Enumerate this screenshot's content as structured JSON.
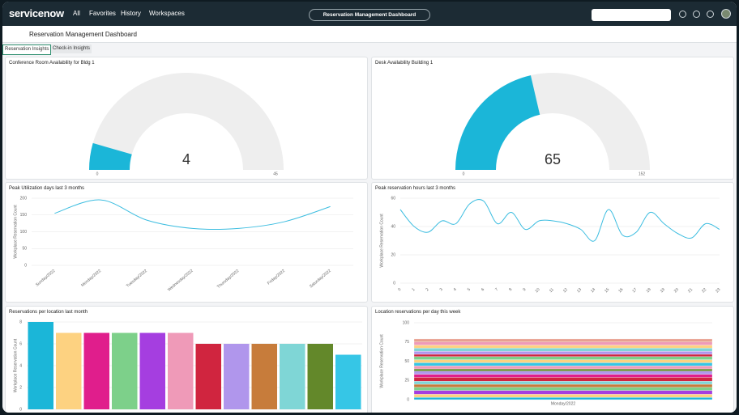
{
  "nav": {
    "logo": "servicenow",
    "items": [
      "All",
      "Favorites",
      "History",
      "Workspaces"
    ],
    "context": "Reservation Management Dashboard"
  },
  "header": {
    "title": "Reservation Management Dashboard"
  },
  "tabs": [
    "Reservation Insights",
    "Check-in Insights"
  ],
  "chart_data": [
    {
      "type": "gauge",
      "title": "Conference Room Availability for Bldg 1",
      "value": 4,
      "min": 0,
      "max": 45,
      "color": "#1bb6d8",
      "track_color": "#eeeeee"
    },
    {
      "type": "gauge",
      "title": "Desk Availability Building 1",
      "value": 65,
      "min": 0,
      "max": 152,
      "color": "#1bb6d8",
      "track_color": "#eeeeee"
    },
    {
      "type": "line",
      "title": "Peak Utilization days last 3 months",
      "y_label": "Workplace Reservation Count",
      "color": "#3cbde0",
      "categories": [
        "Sunday/2022",
        "Monday/2022",
        "Tuesday/2022",
        "Wednesday/2022",
        "Thursday/2022",
        "Friday/2022",
        "Saturday/2022"
      ],
      "values": [
        155,
        195,
        135,
        110,
        110,
        130,
        175
      ],
      "ylim": [
        0,
        200
      ],
      "yticks": [
        0,
        50,
        100,
        150,
        200
      ],
      "grid": true
    },
    {
      "type": "line",
      "title": "Peak reservation hours last 3 months",
      "y_label": "Workplace Reservation Count",
      "color": "#3cbde0",
      "x": [
        0,
        1,
        2,
        3,
        4,
        5,
        6,
        7,
        8,
        9,
        10,
        11,
        12,
        13,
        14,
        15,
        16,
        17,
        18,
        19,
        20,
        21,
        22,
        23
      ],
      "values": [
        52,
        40,
        36,
        44,
        42,
        56,
        58,
        42,
        50,
        38,
        44,
        44,
        42,
        38,
        30,
        52,
        34,
        36,
        50,
        42,
        35,
        32,
        42,
        38
      ],
      "xlim": [
        0,
        23
      ],
      "xticks": [
        0,
        1,
        2,
        3,
        4,
        5,
        6,
        7,
        8,
        9,
        10,
        11,
        12,
        13,
        14,
        15,
        16,
        17,
        18,
        19,
        20,
        21,
        22,
        23
      ],
      "ylim": [
        0,
        60
      ],
      "yticks": [
        0,
        20,
        40,
        60
      ],
      "grid": true
    },
    {
      "type": "bar",
      "title": "Reservations per location last month",
      "y_label": "Workplace Reservation Count",
      "values": [
        8,
        7,
        7,
        7,
        7,
        7,
        6,
        6,
        6,
        6,
        6,
        5
      ],
      "colors": [
        "#1bb6d8",
        "#fdd281",
        "#e01e8c",
        "#7dd08a",
        "#a53ee0",
        "#ef9ab8",
        "#d0253f",
        "#b096ec",
        "#c77c3b",
        "#7fd6d6",
        "#63882a",
        "#36c6e6"
      ],
      "ylim": [
        0,
        8
      ],
      "yticks": [
        0,
        2,
        4,
        6,
        8
      ],
      "grid": true
    },
    {
      "type": "stacked_bar",
      "title": "Location reservations per day this week",
      "y_label": "Workplace Reservation Count",
      "categories": [
        "Monday/2022"
      ],
      "series": [
        {
          "color": "#1bb6d8",
          "values": [
            3
          ]
        },
        {
          "color": "#fdd281",
          "values": [
            4
          ]
        },
        {
          "color": "#a53ee0",
          "values": [
            5
          ]
        },
        {
          "color": "#7dd08a",
          "values": [
            4
          ]
        },
        {
          "color": "#c77c3b",
          "values": [
            4
          ]
        },
        {
          "color": "#7fd6d6",
          "values": [
            4
          ]
        },
        {
          "color": "#d0253f",
          "values": [
            5
          ]
        },
        {
          "color": "#e01e8c",
          "values": [
            4
          ]
        },
        {
          "color": "#b096ec",
          "values": [
            4
          ]
        },
        {
          "color": "#63882a",
          "values": [
            3
          ]
        },
        {
          "color": "#ef9ab8",
          "values": [
            4
          ]
        },
        {
          "color": "#36c6e6",
          "values": [
            4
          ]
        },
        {
          "color": "#fdd281",
          "values": [
            4
          ]
        },
        {
          "color": "#7dd08a",
          "values": [
            4
          ]
        },
        {
          "color": "#d0253f",
          "values": [
            3
          ]
        },
        {
          "color": "#b096ec",
          "values": [
            4
          ]
        },
        {
          "color": "#7fd6d6",
          "values": [
            4
          ]
        },
        {
          "color": "#fdd281",
          "values": [
            4
          ]
        },
        {
          "color": "#ef9ab8",
          "values": [
            4
          ]
        },
        {
          "color": "#e8a090",
          "values": [
            4
          ]
        }
      ],
      "ylim": [
        0,
        100
      ],
      "yticks": [
        0,
        25,
        50,
        75,
        100
      ],
      "grid": true
    }
  ]
}
